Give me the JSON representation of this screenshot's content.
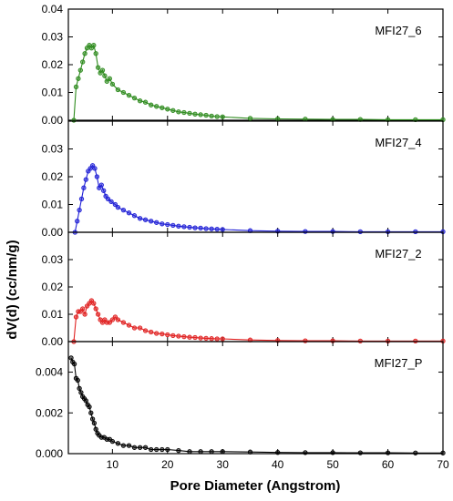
{
  "chart_data": {
    "type": "line",
    "xlabel": "Pore Diameter (Angstrom)",
    "ylabel": "dV(d) (cc/nm/g)",
    "xlim": [
      2,
      70
    ],
    "xticks": [
      10,
      20,
      30,
      40,
      50,
      60,
      70
    ],
    "shared_x": true,
    "panels": [
      {
        "name": "MFI27_6",
        "color": "#2e8b1e",
        "ylim": [
          0,
          0.04
        ],
        "yticks": [
          0.0,
          0.01,
          0.02,
          0.03,
          0.04
        ],
        "ytick_labels": [
          "0.00",
          "0.01",
          "0.02",
          "0.03",
          "0.04"
        ],
        "x": [
          3.0,
          3.4,
          3.8,
          4.2,
          4.6,
          5.0,
          5.4,
          5.8,
          6.2,
          6.6,
          7.0,
          7.4,
          7.8,
          8.2,
          8.6,
          9.0,
          9.5,
          10,
          11,
          12,
          13,
          14,
          15,
          16,
          17,
          18,
          19,
          20,
          21,
          22,
          23,
          24,
          25,
          26,
          27,
          28,
          29,
          30,
          35,
          40,
          45,
          50,
          55,
          60,
          65,
          70
        ],
        "y": [
          0.0,
          0.012,
          0.015,
          0.018,
          0.021,
          0.024,
          0.026,
          0.027,
          0.026,
          0.027,
          0.024,
          0.019,
          0.017,
          0.018,
          0.016,
          0.014,
          0.015,
          0.013,
          0.011,
          0.01,
          0.009,
          0.008,
          0.007,
          0.0065,
          0.0055,
          0.005,
          0.0045,
          0.004,
          0.0035,
          0.003,
          0.0028,
          0.0025,
          0.0022,
          0.002,
          0.0018,
          0.0015,
          0.0013,
          0.0012,
          0.0007,
          0.0005,
          0.0004,
          0.0003,
          0.0003,
          0.0002,
          0.0002,
          0.0002
        ]
      },
      {
        "name": "MFI27_4",
        "color": "#1f1fd6",
        "ylim": [
          0,
          0.04
        ],
        "yticks": [
          0.0,
          0.01,
          0.02,
          0.03,
          0.04
        ],
        "ytick_labels": [
          "0.00",
          "0.01",
          "0.02",
          "0.03",
          ""
        ],
        "x": [
          3.2,
          3.6,
          4.0,
          4.4,
          4.8,
          5.2,
          5.6,
          6.0,
          6.4,
          6.8,
          7.2,
          7.6,
          8.0,
          8.4,
          8.8,
          9.2,
          9.8,
          10.5,
          11,
          12,
          13,
          14,
          15,
          16,
          17,
          18,
          19,
          20,
          21,
          22,
          23,
          24,
          25,
          26,
          27,
          28,
          29,
          30,
          35,
          40,
          45,
          50,
          55,
          60,
          65,
          70
        ],
        "y": [
          0.0,
          0.004,
          0.008,
          0.012,
          0.016,
          0.019,
          0.022,
          0.023,
          0.024,
          0.023,
          0.02,
          0.016,
          0.017,
          0.015,
          0.013,
          0.012,
          0.011,
          0.01,
          0.009,
          0.008,
          0.007,
          0.006,
          0.005,
          0.0045,
          0.004,
          0.0035,
          0.003,
          0.0028,
          0.0025,
          0.0022,
          0.002,
          0.0018,
          0.0016,
          0.0015,
          0.0013,
          0.0012,
          0.0011,
          0.001,
          0.0006,
          0.0004,
          0.0003,
          0.0003,
          0.0002,
          0.0002,
          0.0002,
          0.0002
        ]
      },
      {
        "name": "MFI27_2",
        "color": "#e02020",
        "ylim": [
          0,
          0.04
        ],
        "yticks": [
          0.0,
          0.01,
          0.02,
          0.03,
          0.04
        ],
        "ytick_labels": [
          "0.00",
          "0.01",
          "0.02",
          "0.03",
          ""
        ],
        "x": [
          3.0,
          3.4,
          3.8,
          4.2,
          4.6,
          5.0,
          5.4,
          5.8,
          6.2,
          6.6,
          7.0,
          7.4,
          7.8,
          8.2,
          8.6,
          9.0,
          9.5,
          10,
          10.5,
          11,
          12,
          13,
          14,
          15,
          16,
          17,
          18,
          19,
          20,
          21,
          22,
          23,
          24,
          25,
          26,
          27,
          28,
          29,
          30,
          35,
          40,
          45,
          50,
          55,
          60,
          65,
          70
        ],
        "y": [
          0.0,
          0.009,
          0.011,
          0.011,
          0.012,
          0.01,
          0.013,
          0.014,
          0.015,
          0.014,
          0.012,
          0.01,
          0.008,
          0.007,
          0.008,
          0.007,
          0.007,
          0.008,
          0.009,
          0.008,
          0.007,
          0.006,
          0.005,
          0.005,
          0.004,
          0.0035,
          0.003,
          0.0028,
          0.0025,
          0.0022,
          0.002,
          0.0018,
          0.0016,
          0.0015,
          0.0013,
          0.0012,
          0.0011,
          0.001,
          0.001,
          0.0006,
          0.0004,
          0.0003,
          0.0003,
          0.0002,
          0.0002,
          0.0002,
          0.0002
        ]
      },
      {
        "name": "MFI27_P",
        "color": "#000000",
        "ylim": [
          0,
          0.0055
        ],
        "yticks": [
          0.0,
          0.002,
          0.004
        ],
        "ytick_labels": [
          "0.000",
          "0.002",
          "0.004"
        ],
        "x": [
          2.5,
          2.8,
          3.1,
          3.4,
          3.7,
          4.0,
          4.3,
          4.6,
          4.9,
          5.2,
          5.5,
          5.8,
          6.1,
          6.4,
          6.7,
          7.0,
          7.3,
          7.6,
          8.0,
          8.5,
          9.0,
          9.5,
          10,
          11,
          12,
          13,
          14,
          15,
          16,
          17,
          18,
          19,
          20,
          22,
          24,
          26,
          28,
          30,
          35,
          40,
          45,
          50,
          55,
          60,
          65,
          70
        ],
        "y": [
          0.0047,
          0.0045,
          0.0044,
          0.0037,
          0.0036,
          0.0032,
          0.003,
          0.0028,
          0.0027,
          0.0026,
          0.0024,
          0.0023,
          0.002,
          0.0017,
          0.0015,
          0.0012,
          0.001,
          0.0009,
          0.0008,
          0.0008,
          0.0007,
          0.0007,
          0.0006,
          0.0005,
          0.0004,
          0.0004,
          0.0003,
          0.0003,
          0.0003,
          0.0002,
          0.0002,
          0.0002,
          0.0002,
          0.00015,
          0.0001,
          0.0001,
          0.0001,
          0.0001,
          8e-05,
          6e-05,
          5e-05,
          5e-05,
          4e-05,
          4e-05,
          3e-05,
          3e-05
        ]
      }
    ]
  }
}
